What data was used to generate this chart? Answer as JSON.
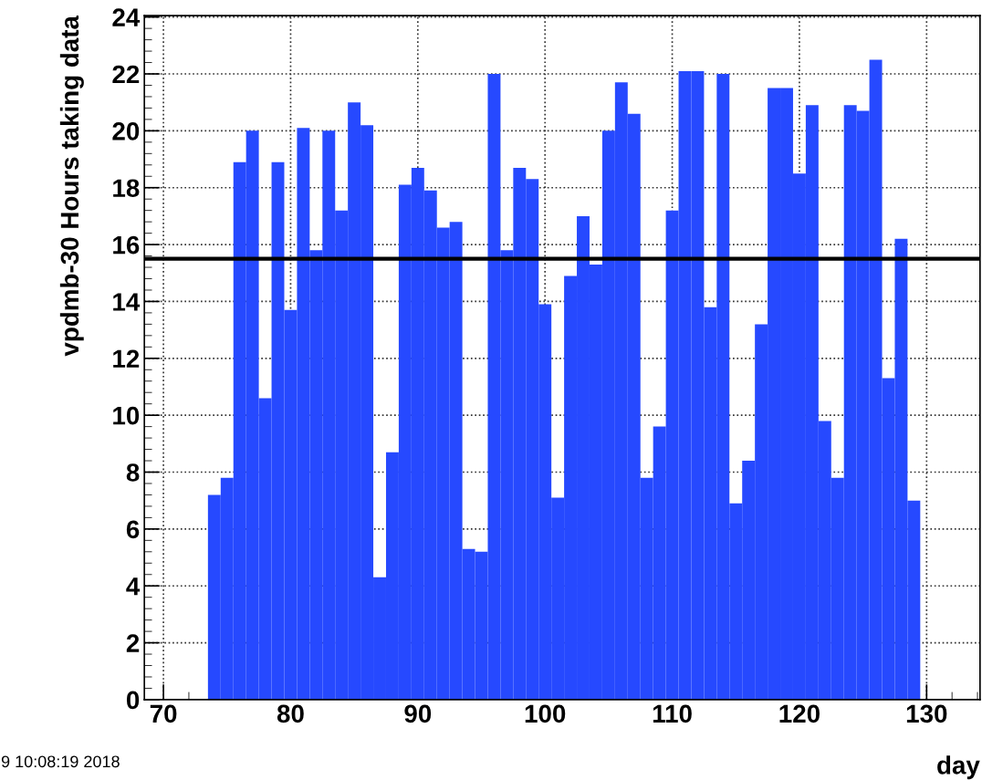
{
  "chart_data": {
    "type": "histogram",
    "xlabel": "day",
    "ylabel": "vpdmb-30 Hours taking data",
    "annotations": [
      "9 10:08:19 2018"
    ],
    "bins": [
      73.5,
      74.5,
      75.5,
      76.5,
      77.5,
      78.5,
      79.5,
      80.5,
      81.5,
      82.5,
      83.5,
      84.5,
      85.5,
      86.5,
      87.5,
      88.5,
      89.5,
      90.5,
      91.5,
      92.5,
      93.5,
      94.5,
      95.5,
      96.5,
      97.5,
      98.5,
      99.5,
      100.5,
      101.5,
      102.5,
      103.5,
      104.5,
      105.5,
      106.5,
      107.5,
      108.5,
      109.5,
      110.5,
      111.5,
      112.5,
      113.5,
      114.5,
      115.5,
      116.5,
      117.5,
      118.5,
      119.5,
      120.5,
      121.5,
      122.5,
      123.5,
      124.5,
      125.5,
      126.5,
      127.5,
      128.5,
      129.5
    ],
    "values": [
      7.2,
      7.8,
      18.9,
      20.0,
      10.6,
      18.9,
      13.7,
      20.1,
      15.8,
      20.0,
      17.2,
      21.0,
      20.2,
      4.3,
      8.7,
      18.1,
      18.7,
      17.9,
      16.6,
      16.8,
      5.3,
      5.2,
      22.0,
      15.8,
      18.7,
      18.3,
      13.9,
      7.1,
      14.9,
      17.0,
      15.3,
      20.0,
      21.7,
      20.6,
      7.8,
      9.6,
      17.2,
      22.1,
      22.1,
      13.8,
      22.0,
      6.9,
      8.4,
      13.2,
      21.5,
      21.5,
      18.5,
      20.9,
      9.8,
      7.8,
      20.9,
      20.7,
      22.5,
      11.3,
      16.2,
      7.0
    ],
    "color": "#2649ff",
    "xlim": [
      68.5,
      134.2
    ],
    "xticks": [
      70,
      80,
      90,
      100,
      110,
      120,
      130
    ],
    "ylim": [
      0,
      24.05
    ],
    "yticks": [
      0,
      2,
      4,
      6,
      8,
      10,
      12,
      14,
      16,
      18,
      20,
      22,
      24
    ],
    "ref_lines": [
      {
        "axis": "y",
        "value": 15.5,
        "color": "#000000",
        "line_style": "solid"
      }
    ],
    "grid": true
  }
}
